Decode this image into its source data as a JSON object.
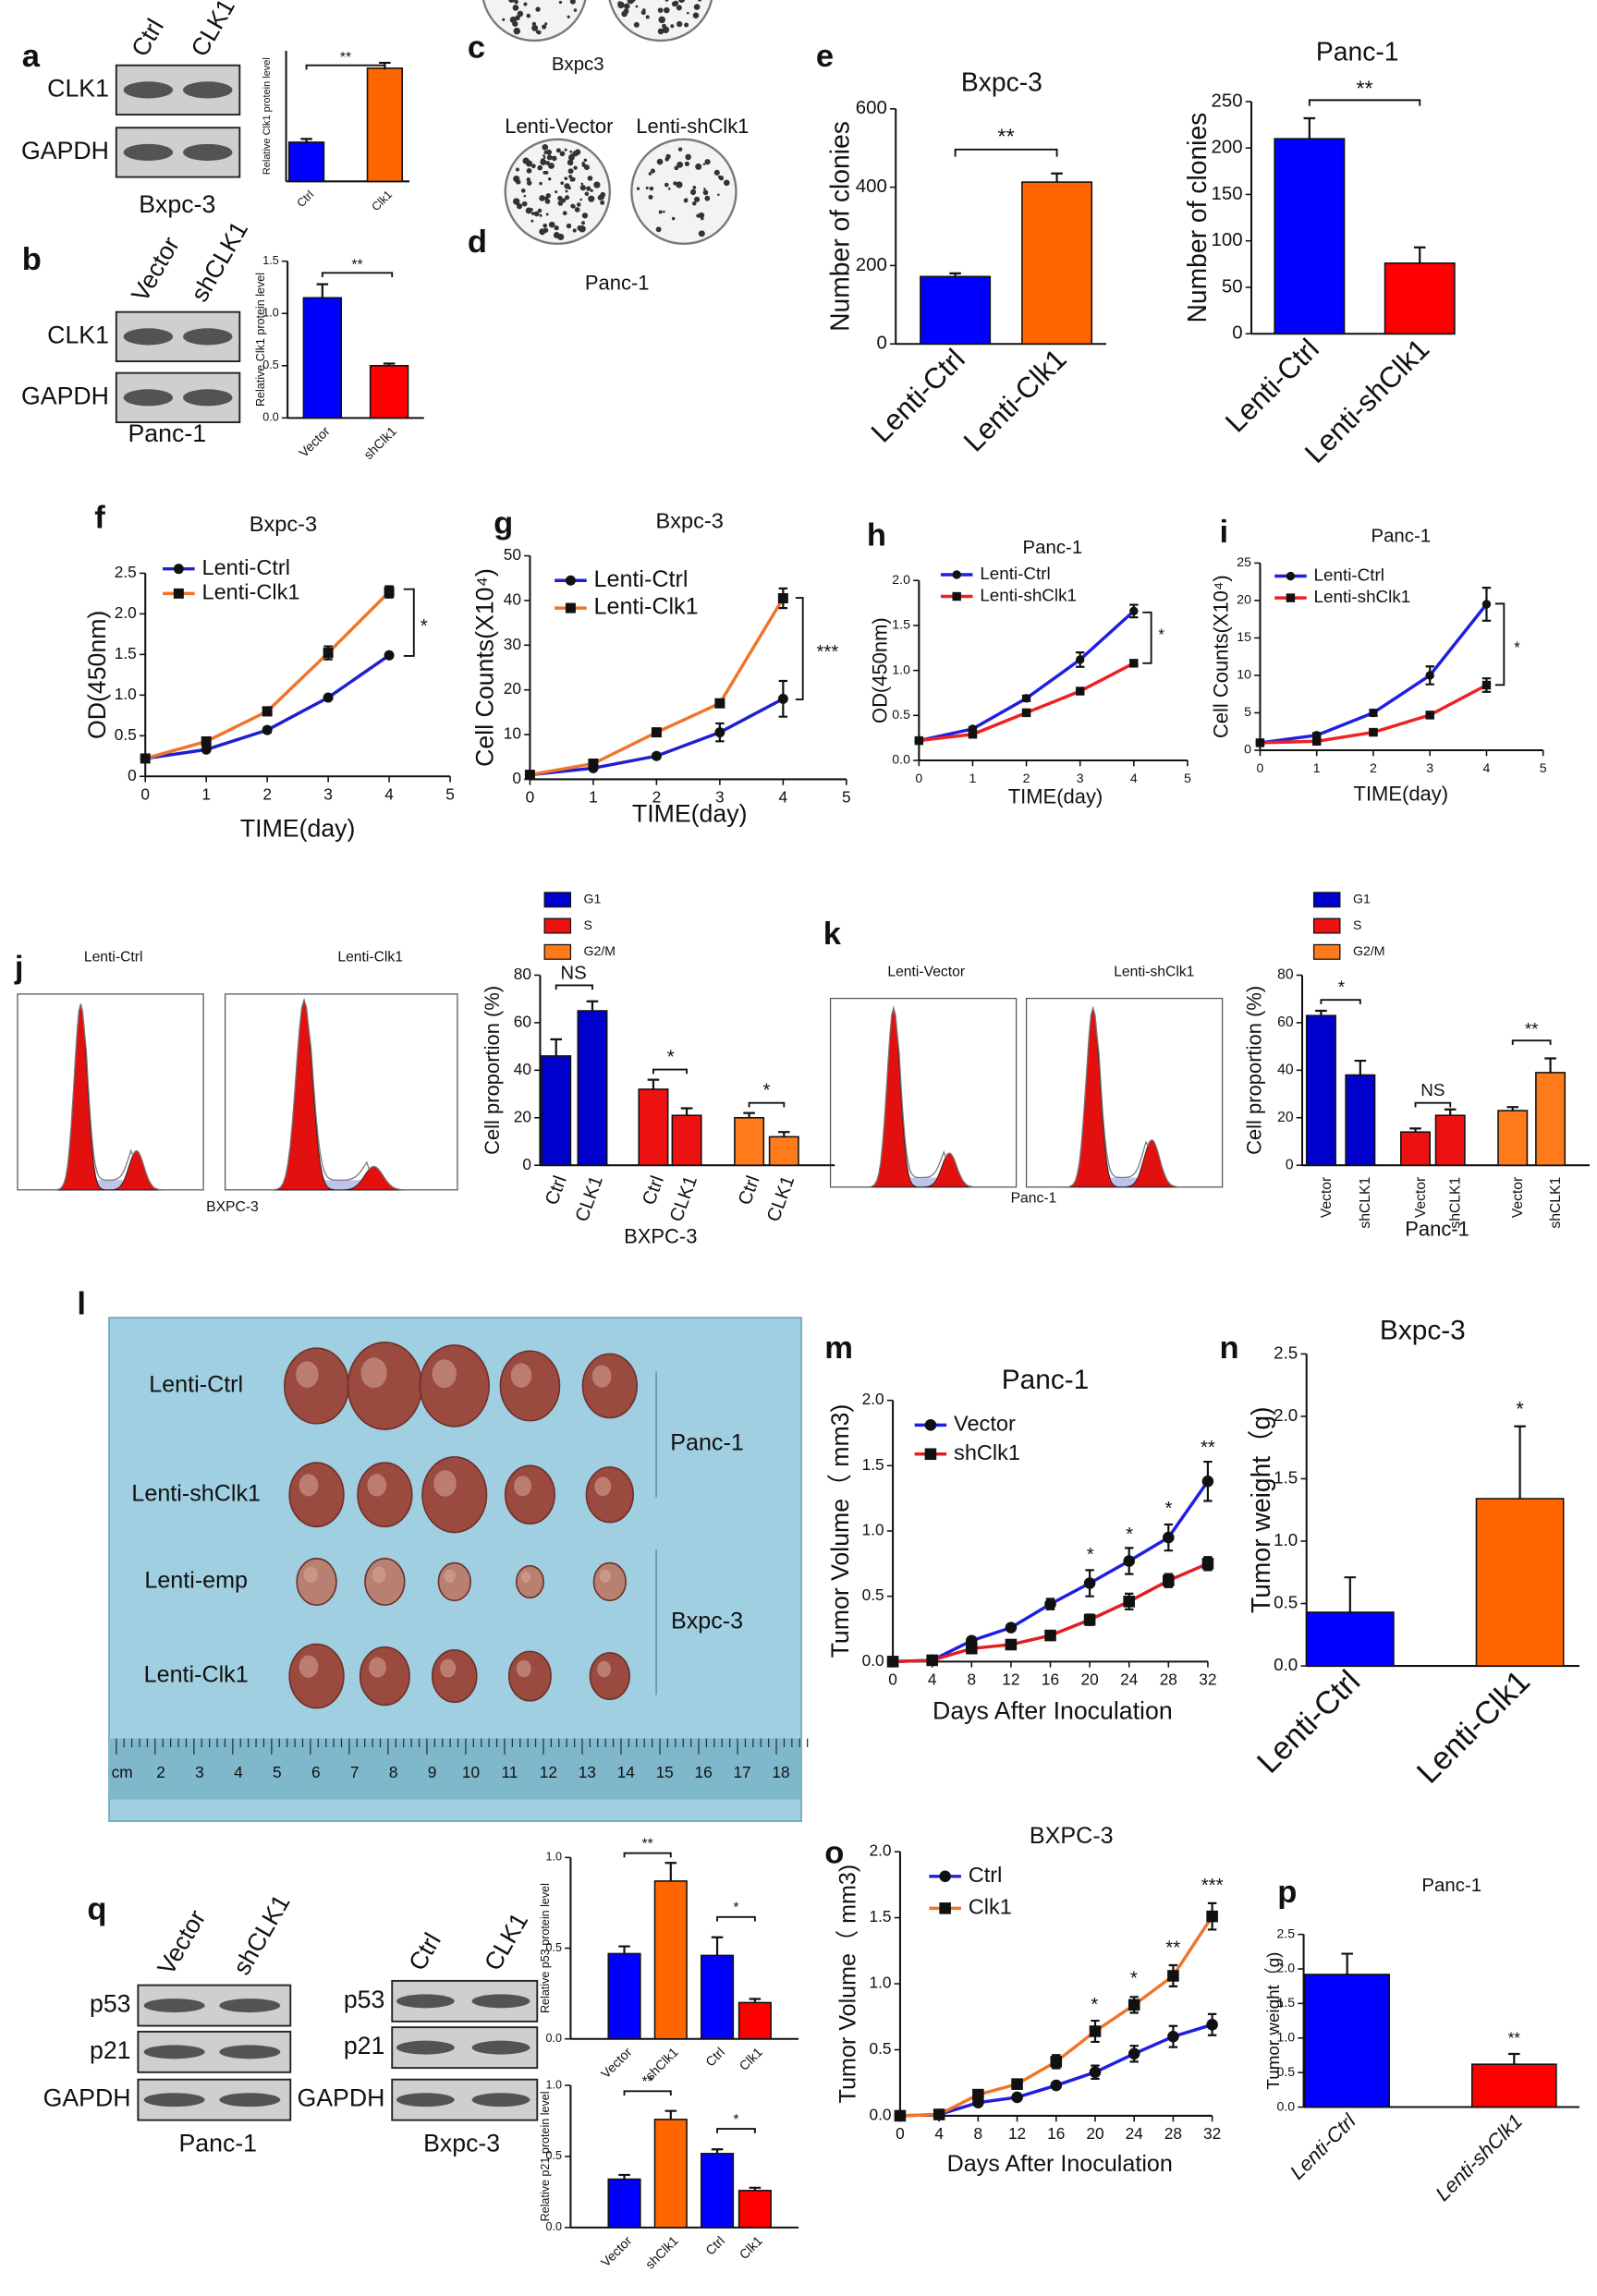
{
  "panel_labels": [
    "a",
    "b",
    "c",
    "d",
    "e",
    "f",
    "g",
    "h",
    "i",
    "j",
    "k",
    "l",
    "m",
    "n",
    "o",
    "p",
    "q"
  ],
  "blot_a": {
    "lanes": [
      "Ctrl",
      "CLK1"
    ],
    "rows": [
      "CLK1",
      "GAPDH"
    ],
    "cell_line": "Bxpc-3"
  },
  "blot_b": {
    "lanes": [
      "Vector",
      "shCLK1"
    ],
    "rows": [
      "CLK1",
      "GAPDH"
    ],
    "cell_line": "Panc-1"
  },
  "colony_c": {
    "cell_line": "Bxpc3"
  },
  "colony_d": {
    "lanes": [
      "Lenti-Vector",
      "Lenti-shClk1"
    ],
    "cell_line": "Panc-1"
  },
  "flow_j": {
    "samples": [
      "Lenti-Ctrl",
      "Lenti-Clk1"
    ],
    "cell_line": "BXPC-3"
  },
  "flow_k": {
    "samples": [
      "Lenti-Vector",
      "Lenti-shClk1"
    ],
    "cell_line": "Panc-1"
  },
  "tumors_l": {
    "rows": [
      "Lenti-Ctrl",
      "Lenti-shClk1",
      "Lenti-emp",
      "Lenti-Clk1"
    ],
    "groups": [
      "Panc-1",
      "Bxpc-3"
    ],
    "ruler": [
      "cm",
      "2",
      "3",
      "4",
      "5",
      "6",
      "7",
      "8",
      "9",
      "10",
      "11",
      "12",
      "13",
      "14",
      "15",
      "16",
      "17",
      "18"
    ]
  },
  "blot_q_left": {
    "lanes": [
      "Vector",
      "shCLK1"
    ],
    "rows": [
      "p53",
      "p21",
      "GAPDH"
    ],
    "cell_line": "Panc-1"
  },
  "blot_q_right": {
    "lanes": [
      "Ctrl",
      "CLK1"
    ],
    "rows": [
      "p53",
      "p21",
      "GAPDH"
    ],
    "cell_line": "Bxpc-3"
  },
  "chart_data": [
    {
      "type": "bar",
      "y_label": "Relative Clk1 protein level",
      "categories": [
        "Ctrl",
        "Clk1"
      ],
      "values": [
        0.36,
        1.04
      ],
      "errors": [
        0.03,
        0.05
      ],
      "colors": [
        "#0000ff",
        "#ff6600"
      ],
      "ylim": [
        0,
        1.2
      ],
      "annotations": [
        "**"
      ]
    },
    {
      "type": "bar",
      "y_label": "Relative Clk1 protein level",
      "categories": [
        "Vector",
        "shClk1"
      ],
      "values": [
        1.15,
        0.5
      ],
      "errors": [
        0.13,
        0.02
      ],
      "colors": [
        "#0000ff",
        "#ff0000"
      ],
      "ylim": [
        0,
        1.5
      ],
      "yticks": [
        {
          "value": 0,
          "label": "0.0"
        },
        0.5,
        {
          "value": 1,
          "label": "1.0"
        },
        1.5
      ],
      "annotations": [
        "**"
      ]
    },
    {
      "type": "bar",
      "title": "Bxpc-3",
      "y_label": "Number of clonies",
      "categories": [
        "Lenti-Ctrl",
        "Lenti-Clk1"
      ],
      "values": [
        172,
        413
      ],
      "errors": [
        8,
        22
      ],
      "colors": [
        "#0000ff",
        "#ff6600"
      ],
      "ylim": [
        0,
        600
      ],
      "yticks": [
        0,
        200,
        400,
        600
      ],
      "annotations": [
        "**"
      ]
    },
    {
      "type": "bar",
      "title": "Panc-1",
      "y_label": "Number of clonies",
      "categories": [
        "Lenti-Ctrl",
        "Lenti-shClk1"
      ],
      "values": [
        210,
        76
      ],
      "errors": [
        22,
        17
      ],
      "colors": [
        "#0000ff",
        "#ff0000"
      ],
      "ylim": [
        0,
        250
      ],
      "yticks": [
        0,
        50,
        100,
        150,
        200,
        250
      ],
      "annotations": [
        "**"
      ]
    },
    {
      "type": "line",
      "title": "Bxpc-3",
      "x_label": "TIME(day)",
      "y_label": "OD(450nm)",
      "x": [
        0,
        1,
        2,
        3,
        4
      ],
      "xlim": [
        0,
        5
      ],
      "xticks": [
        0,
        1,
        2,
        3,
        4,
        5
      ],
      "ylim": [
        0,
        2.5
      ],
      "yticks": [
        0,
        0.5,
        {
          "value": 1,
          "label": "1.0"
        },
        1.5,
        {
          "value": 2,
          "label": "2.0"
        },
        2.5
      ],
      "series": [
        {
          "name": "Lenti-Ctrl",
          "color": "#1f1fd1",
          "marker": "circle",
          "values": [
            0.22,
            0.33,
            0.57,
            0.97,
            1.49
          ],
          "errors": [
            0.01,
            0.02,
            0.03,
            0.02,
            0.02
          ]
        },
        {
          "name": "Lenti-Clk1",
          "color": "#f0752a",
          "marker": "square",
          "values": [
            0.22,
            0.43,
            0.8,
            1.52,
            2.27
          ],
          "errors": [
            0.01,
            0.02,
            0.05,
            0.08,
            0.07
          ]
        }
      ],
      "annotations": [
        "*"
      ]
    },
    {
      "type": "line",
      "title": "Bxpc-3",
      "x_label": "TIME(day)",
      "y_label": "Cell Counts(X10⁴)",
      "x": [
        0,
        1,
        2,
        3,
        4
      ],
      "xlim": [
        0,
        5
      ],
      "xticks": [
        0,
        1,
        2,
        3,
        4,
        5
      ],
      "ylim": [
        0,
        50
      ],
      "yticks": [
        0,
        10,
        20,
        30,
        40,
        50
      ],
      "series": [
        {
          "name": "Lenti-Ctrl",
          "color": "#1f1fd1",
          "marker": "circle",
          "values": [
            1,
            2.5,
            5.2,
            10.5,
            18
          ],
          "errors": [
            0.3,
            0.4,
            0.5,
            2,
            4
          ]
        },
        {
          "name": "Lenti-Clk1",
          "color": "#f0752a",
          "marker": "square",
          "values": [
            1,
            3.5,
            10.5,
            17,
            40.5
          ],
          "errors": [
            0.3,
            0.5,
            0.7,
            0.8,
            2.2
          ]
        }
      ],
      "annotations": [
        "***"
      ]
    },
    {
      "type": "line",
      "title": "Panc-1",
      "x_label": "TIME(day)",
      "y_label": "OD(450nm)",
      "x": [
        0,
        1,
        2,
        3,
        4
      ],
      "xlim": [
        0,
        5
      ],
      "xticks": [
        0,
        1,
        2,
        3,
        4,
        5
      ],
      "ylim": [
        0,
        2
      ],
      "yticks": [
        {
          "value": 0,
          "label": "0.0"
        },
        0.5,
        {
          "value": 1,
          "label": "1.0"
        },
        1.5,
        {
          "value": 2,
          "label": "2.0"
        }
      ],
      "series": [
        {
          "name": "Lenti-Ctrl",
          "color": "#1f1fe0",
          "marker": "circle",
          "values": [
            0.22,
            0.35,
            0.69,
            1.12,
            1.66
          ],
          "errors": [
            0.01,
            0.02,
            0.03,
            0.08,
            0.07
          ]
        },
        {
          "name": "Lenti-shClk1",
          "color": "#ee2222",
          "marker": "square",
          "values": [
            0.22,
            0.29,
            0.53,
            0.77,
            1.08
          ],
          "errors": [
            0.01,
            0.02,
            0.02,
            0.02,
            0.03
          ]
        }
      ],
      "annotations": [
        "*"
      ]
    },
    {
      "type": "line",
      "title": "Panc-1",
      "x_label": "TIME(day)",
      "y_label": "Cell Counts(X10⁴)",
      "x": [
        0,
        1,
        2,
        3,
        4
      ],
      "xlim": [
        0,
        5
      ],
      "xticks": [
        0,
        1,
        2,
        3,
        4,
        5
      ],
      "ylim": [
        0,
        25
      ],
      "yticks": [
        0,
        5,
        10,
        15,
        20,
        25
      ],
      "series": [
        {
          "name": "Lenti-Ctrl",
          "color": "#1f1fe0",
          "marker": "circle",
          "values": [
            1,
            2,
            5,
            10,
            19.5
          ],
          "errors": [
            0.2,
            0.3,
            0.4,
            1.2,
            2.2
          ]
        },
        {
          "name": "Lenti-shClk1",
          "color": "#ee2222",
          "marker": "square",
          "values": [
            1,
            1.2,
            2.4,
            4.7,
            8.7
          ],
          "errors": [
            0.2,
            0.2,
            0.3,
            0.4,
            0.9
          ]
        }
      ],
      "annotations": [
        "*"
      ]
    },
    {
      "type": "bar",
      "x_label": "BXPC-3",
      "y_label": "Cell proportion (%)",
      "categories": [
        "Ctrl",
        "CLK1"
      ],
      "ylim": [
        0,
        80
      ],
      "yticks": [
        0,
        20,
        40,
        60,
        80
      ],
      "series": [
        {
          "name": "G1",
          "color": "#0000cc",
          "values": [
            46,
            65
          ],
          "errors": [
            7,
            4
          ]
        },
        {
          "name": "S",
          "color": "#ee1111",
          "values": [
            32,
            21
          ],
          "errors": [
            4,
            3
          ]
        },
        {
          "name": "G2/M",
          "color": "#ff7a1a",
          "values": [
            20,
            12
          ],
          "errors": [
            2,
            2
          ]
        }
      ],
      "annotations": [
        "NS",
        "*",
        "*"
      ]
    },
    {
      "type": "bar",
      "x_label": "Panc-1",
      "y_label": "Cell proportion (%)",
      "categories": [
        "Vector",
        "shCLK1"
      ],
      "ylim": [
        0,
        80
      ],
      "yticks": [
        0,
        20,
        40,
        60,
        80
      ],
      "series": [
        {
          "name": "G1",
          "color": "#0000cc",
          "values": [
            63,
            38
          ],
          "errors": [
            2,
            6
          ]
        },
        {
          "name": "S",
          "color": "#ee1111",
          "values": [
            14,
            21
          ],
          "errors": [
            1.5,
            2.5
          ]
        },
        {
          "name": "G2/M",
          "color": "#ff7a1a",
          "values": [
            23,
            39
          ],
          "errors": [
            1.5,
            6
          ]
        }
      ],
      "annotations": [
        "*",
        "NS",
        "**"
      ]
    },
    {
      "type": "line",
      "title": "Panc-1",
      "x_label": "Days After Inoculation",
      "y_label": "Tumor Volume（ mm3)",
      "x": [
        0,
        4,
        8,
        12,
        16,
        20,
        24,
        28,
        32
      ],
      "xlim": [
        0,
        32
      ],
      "xticks": [
        0,
        4,
        8,
        12,
        16,
        20,
        24,
        28,
        32
      ],
      "ylim": [
        0,
        2
      ],
      "yticks": [
        {
          "value": 0,
          "label": "0.0"
        },
        0.5,
        {
          "value": 1,
          "label": "1.0"
        },
        1.5,
        {
          "value": 2,
          "label": "2.0"
        }
      ],
      "series": [
        {
          "name": "Vector",
          "color": "#1f1fe0",
          "marker": "circle",
          "values": [
            0,
            0.01,
            0.16,
            0.26,
            0.44,
            0.6,
            0.77,
            0.95,
            1.38
          ],
          "errors": [
            0,
            0.01,
            0.02,
            0.02,
            0.04,
            0.1,
            0.1,
            0.1,
            0.15
          ]
        },
        {
          "name": "shClk1",
          "color": "#e02020",
          "marker": "square",
          "values": [
            0,
            0.01,
            0.1,
            0.13,
            0.2,
            0.32,
            0.46,
            0.62,
            0.75
          ],
          "errors": [
            0,
            0.01,
            0.02,
            0.02,
            0.02,
            0.04,
            0.06,
            0.05,
            0.05
          ]
        }
      ],
      "annotations": [
        "*",
        "*",
        "*",
        "**"
      ]
    },
    {
      "type": "bar",
      "title": "Bxpc-3",
      "y_label": "Tumor weight（g)",
      "categories": [
        "Lenti-Ctrl",
        "Lenti-Clk1"
      ],
      "values": [
        0.43,
        1.34
      ],
      "errors": [
        0.28,
        0.58
      ],
      "colors": [
        "#0000ff",
        "#ff6600"
      ],
      "ylim": [
        0,
        2.5
      ],
      "yticks": [
        {
          "value": 0,
          "label": "0.0"
        },
        0.5,
        {
          "value": 1,
          "label": "1.0"
        },
        1.5,
        {
          "value": 2,
          "label": "2.0"
        },
        2.5
      ],
      "annotations": [
        "*"
      ]
    },
    {
      "type": "line",
      "title": "BXPC-3",
      "x_label": "Days After Inoculation",
      "y_label": "Tumor Volume（ mm3)",
      "x": [
        0,
        4,
        8,
        12,
        16,
        20,
        24,
        28,
        32
      ],
      "xlim": [
        0,
        32
      ],
      "xticks": [
        0,
        4,
        8,
        12,
        16,
        20,
        24,
        28,
        32
      ],
      "ylim": [
        0,
        2
      ],
      "yticks": [
        {
          "value": 0,
          "label": "0.0"
        },
        0.5,
        {
          "value": 1,
          "label": "1.0"
        },
        1.5,
        {
          "value": 2,
          "label": "2.0"
        }
      ],
      "series": [
        {
          "name": "Ctrl",
          "color": "#1f1fe0",
          "marker": "circle",
          "values": [
            0,
            0.01,
            0.1,
            0.14,
            0.23,
            0.33,
            0.47,
            0.6,
            0.69
          ],
          "errors": [
            0,
            0.01,
            0.02,
            0.02,
            0.02,
            0.05,
            0.06,
            0.08,
            0.08
          ]
        },
        {
          "name": "Clk1",
          "color": "#f0752a",
          "marker": "square",
          "values": [
            0,
            0.01,
            0.16,
            0.24,
            0.41,
            0.64,
            0.84,
            1.06,
            1.51
          ],
          "errors": [
            0,
            0.01,
            0.02,
            0.03,
            0.05,
            0.08,
            0.06,
            0.08,
            0.1
          ]
        }
      ],
      "annotations": [
        "*",
        "*",
        "**",
        "***"
      ]
    },
    {
      "type": "bar",
      "title": "Panc-1",
      "y_label": "Tumor weight（g)",
      "categories": [
        "Lenti-Ctrl",
        "Lenti-shClk1"
      ],
      "values": [
        1.92,
        0.62
      ],
      "errors": [
        0.3,
        0.15
      ],
      "colors": [
        "#0000ff",
        "#ff0000"
      ],
      "ylim": [
        0,
        2.5
      ],
      "yticks": [
        {
          "value": 0,
          "label": "0.0"
        },
        0.5,
        {
          "value": 1,
          "label": "1.0"
        },
        1.5,
        {
          "value": 2,
          "label": "2.0"
        },
        2.5
      ],
      "annotations": [
        "**"
      ]
    },
    {
      "type": "bar",
      "y_label": "Relative p53 protein level",
      "categories": [
        "Vector",
        "shClk1",
        "Ctrl",
        "Clk1"
      ],
      "values": [
        0.47,
        0.87,
        0.46,
        0.2
      ],
      "errors": [
        0.04,
        0.1,
        0.1,
        0.02
      ],
      "colors": [
        "#0000ff",
        "#ff6600",
        "#0000ff",
        "#ff0000"
      ],
      "ylim": [
        0,
        1
      ],
      "yticks": [
        {
          "value": 0,
          "label": "0.0"
        },
        0.5,
        {
          "value": 1,
          "label": "1.0"
        }
      ],
      "annotations": [
        "**",
        "*"
      ]
    },
    {
      "type": "bar",
      "y_label": "Relative p21 protein level",
      "categories": [
        "Vector",
        "shClk1",
        "Ctrl",
        "Clk1"
      ],
      "values": [
        0.34,
        0.76,
        0.52,
        0.26
      ],
      "errors": [
        0.03,
        0.06,
        0.03,
        0.02
      ],
      "colors": [
        "#0000ff",
        "#ff6600",
        "#0000ff",
        "#ff0000"
      ],
      "ylim": [
        0,
        1
      ],
      "yticks": [
        {
          "value": 0,
          "label": "0.0"
        },
        0.5,
        {
          "value": 1,
          "label": "1.0"
        }
      ],
      "annotations": [
        "**",
        "*"
      ]
    }
  ]
}
